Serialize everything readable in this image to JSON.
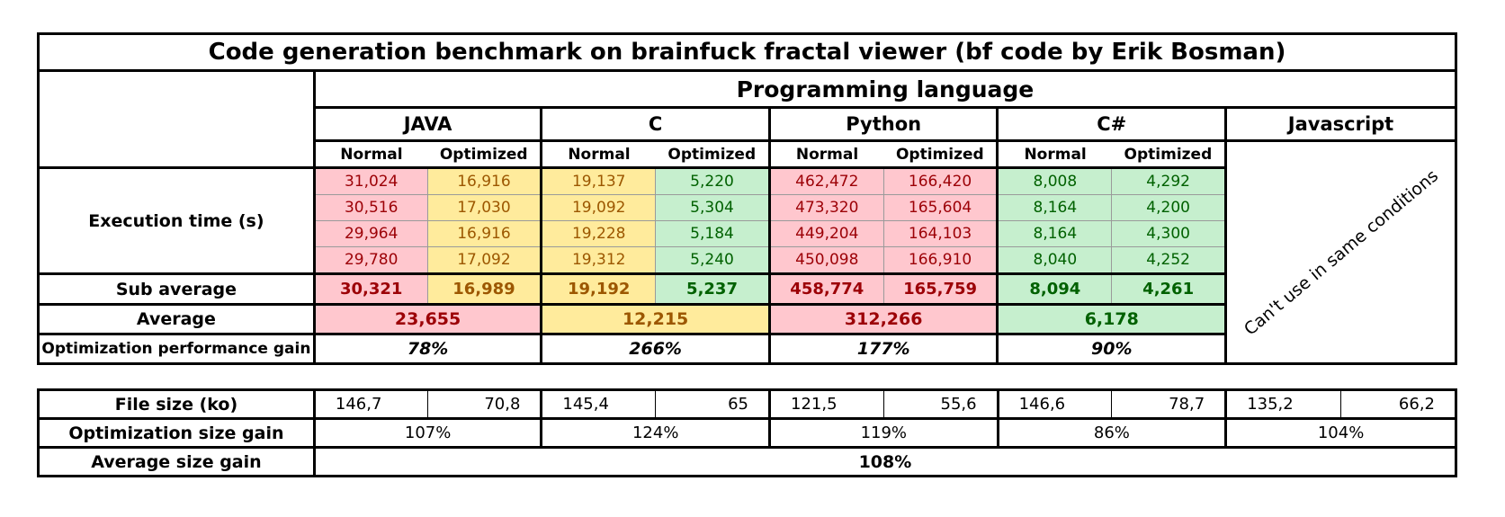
{
  "chart_data": {
    "type": "table",
    "title": "Code generation benchmark on brainfuck fractal viewer (bf code by Erik Bosman)",
    "header": "Programming language",
    "languages": [
      "JAVA",
      "C",
      "Python",
      "C#",
      "Javascript"
    ],
    "subheaders": [
      "Normal",
      "Optimized"
    ],
    "row_labels": {
      "execution": "Execution time (s)",
      "sub_average": "Sub average",
      "average": "Average",
      "perf_gain": "Optimization performance gain",
      "file_size": "File size (ko)",
      "size_gain": "Optimization size gain",
      "avg_size_gain": "Average size gain"
    },
    "execution_rows": [
      [
        "31,024",
        "16,916",
        "19,137",
        "5,220",
        "462,472",
        "166,420",
        "8,008",
        "4,292"
      ],
      [
        "30,516",
        "17,030",
        "19,092",
        "5,304",
        "473,320",
        "165,604",
        "8,164",
        "4,200"
      ],
      [
        "29,964",
        "16,916",
        "19,228",
        "5,184",
        "449,204",
        "164,103",
        "8,164",
        "4,300"
      ],
      [
        "29,780",
        "17,092",
        "19,312",
        "5,240",
        "450,098",
        "166,910",
        "8,040",
        "4,252"
      ]
    ],
    "sub_average": [
      "30,321",
      "16,989",
      "19,192",
      "5,237",
      "458,774",
      "165,759",
      "8,094",
      "4,261"
    ],
    "average": [
      "23,655",
      "12,215",
      "312,266",
      "6,178"
    ],
    "perf_gain": [
      "78%",
      "266%",
      "177%",
      "90%"
    ],
    "javascript_note": "Can't use in same conditions",
    "file_size": [
      "146,7",
      "70,8",
      "145,4",
      "65",
      "121,5",
      "55,6",
      "146,6",
      "78,7",
      "135,2",
      "66,2"
    ],
    "size_gain": [
      "107%",
      "124%",
      "119%",
      "86%",
      "104%"
    ],
    "avg_size_gain": "108%"
  },
  "colors": {
    "slow_fill": "#ffc7ce",
    "slow_text": "#9c0006",
    "mid_fill": "#ffeb9c",
    "mid_text": "#9c5700",
    "fast_fill": "#c6efce",
    "fast_text": "#006100"
  }
}
